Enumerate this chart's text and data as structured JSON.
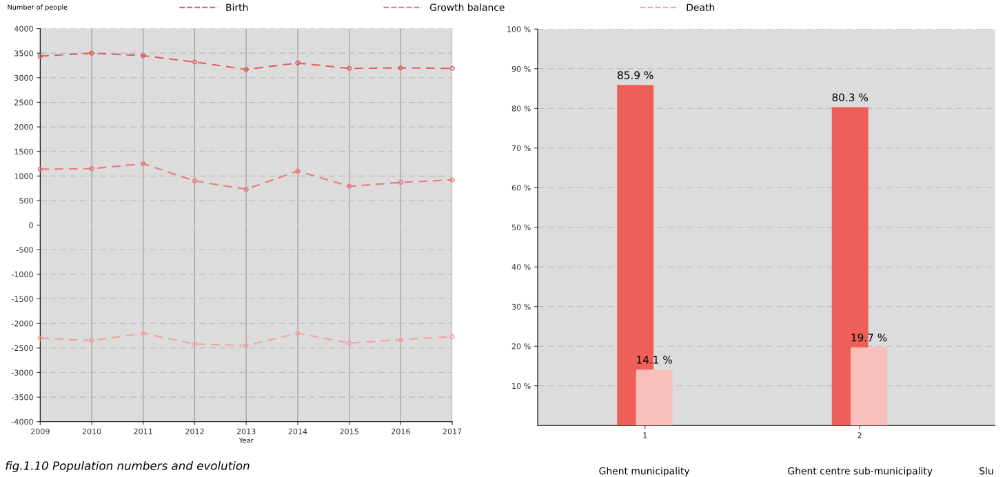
{
  "chart_data": [
    {
      "type": "line",
      "ylabel": "Number of people",
      "xlabel": "Year",
      "x": [
        2009,
        2010,
        2011,
        2012,
        2013,
        2014,
        2015,
        2016,
        2017
      ],
      "series": [
        {
          "name": "Birth",
          "color": "#e06060",
          "values": [
            3440,
            3500,
            3450,
            3320,
            3170,
            3300,
            3190,
            3200,
            3190
          ]
        },
        {
          "name": "Growth balance",
          "color": "#e87c78",
          "values": [
            1140,
            1150,
            1250,
            900,
            730,
            1100,
            790,
            870,
            920
          ]
        },
        {
          "name": "Death",
          "color": "#f0a49c",
          "values": [
            -2300,
            -2350,
            -2200,
            -2420,
            -2450,
            -2200,
            -2400,
            -2330,
            -2270
          ]
        }
      ],
      "xlim": [
        2009,
        2017
      ],
      "xticks": [
        2009,
        2010,
        2011,
        2012,
        2013,
        2014,
        2015,
        2016,
        2017
      ],
      "ylim": [
        -4000,
        4000
      ],
      "yticks": [
        -4000,
        -3500,
        -3000,
        -2500,
        -2000,
        -1500,
        -1000,
        -500,
        0,
        500,
        1000,
        1500,
        2000,
        2500,
        3000,
        3500,
        4000
      ],
      "grid": true,
      "legend": "top",
      "marker": "circle",
      "line_style": "dashed",
      "ref_lines": [
        {
          "axis": "y",
          "value": 0,
          "color": "#e4e4e4"
        }
      ],
      "annotations": [
        "fig.1.10 Population numbers and evolution"
      ]
    },
    {
      "type": "bar",
      "categories": [
        "1",
        "2"
      ],
      "series": [
        {
          "color": "#ee5f5a",
          "values": [
            85.9,
            80.3
          ],
          "value_labels": [
            "85.9 %",
            "80.3 %"
          ]
        },
        {
          "color": "#f8c0b8",
          "values": [
            14.1,
            19.7
          ],
          "value_labels": [
            "14.1 %",
            "19.7 %"
          ]
        }
      ],
      "ylim": [
        0,
        100
      ],
      "yticks": [
        {
          "value": 10,
          "label": "10 %"
        },
        {
          "value": 20,
          "label": "20 %"
        },
        {
          "value": 30,
          "label": "30 %"
        },
        {
          "value": 40,
          "label": "40 %"
        },
        {
          "value": 50,
          "label": "50 %"
        },
        {
          "value": 60,
          "label": "60 %"
        },
        {
          "value": 70,
          "label": "70 %"
        },
        {
          "value": 80,
          "label": "80 %"
        },
        {
          "value": 90,
          "label": "90 %"
        },
        {
          "value": 100,
          "label": "100 %"
        }
      ],
      "grid": "y",
      "annotations": [
        "Ghent municipality",
        "Ghent centre sub-municipality",
        "Slu"
      ]
    }
  ]
}
